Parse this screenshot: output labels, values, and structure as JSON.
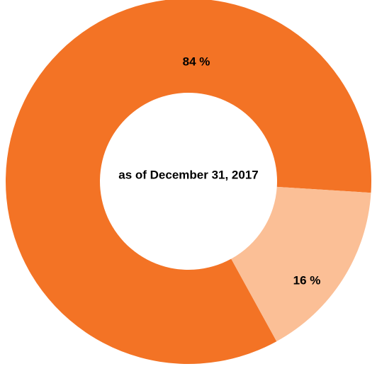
{
  "chart_data": {
    "type": "pie",
    "variant": "donut",
    "center_text": "as of December 31, 2017",
    "slices": [
      {
        "label": "84 %",
        "value": 84,
        "color": "#f37325"
      },
      {
        "label": "16 %",
        "value": 16,
        "color": "#fbbf96"
      }
    ]
  }
}
